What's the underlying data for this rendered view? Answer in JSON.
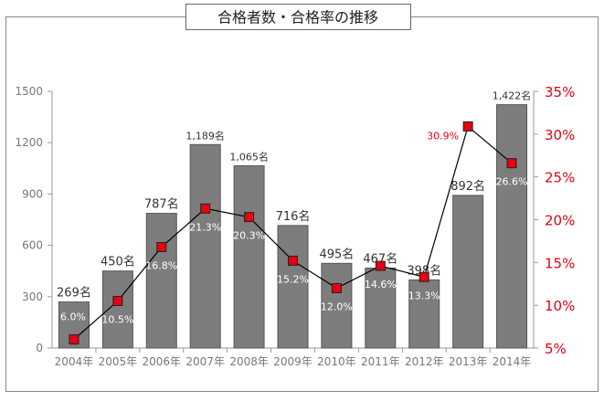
{
  "chart_data": {
    "type": "bar",
    "title": "合格者数・合格率の推移",
    "categories": [
      "2004年",
      "2005年",
      "2006年",
      "2007年",
      "2008年",
      "2009年",
      "2010年",
      "2011年",
      "2012年",
      "2013年",
      "2014年"
    ],
    "series": [
      {
        "values": [
          269,
          450,
          787,
          1189,
          1065,
          716,
          495,
          467,
          398,
          892,
          1422
        ],
        "data_labels": [
          "269名",
          "450名",
          "787名",
          "1,189名",
          "1,065名",
          "716名",
          "495名",
          "467名",
          "398名",
          "892名",
          "1,422名"
        ]
      },
      {
        "type": "line",
        "axis": "right",
        "values": [
          6.0,
          10.5,
          16.8,
          21.3,
          20.3,
          15.2,
          12.0,
          14.6,
          13.3,
          30.9,
          26.6
        ],
        "data_labels": [
          "6.0%",
          "10.5%",
          "16.8%",
          "21.3%",
          "20.3%",
          "15.2%",
          "12.0%",
          "14.6%",
          "13.3%",
          "30.9%",
          "26.6%"
        ]
      }
    ],
    "y_left": {
      "ticks": [
        0,
        300,
        600,
        900,
        1200,
        1500
      ],
      "tick_labels": [
        "0",
        "300",
        "600",
        "900",
        "1200",
        "1500"
      ],
      "ylim": [
        0,
        1500
      ]
    },
    "y_right": {
      "ticks": [
        5,
        10,
        15,
        20,
        25,
        30,
        35
      ],
      "tick_labels": [
        "5%",
        "10%",
        "15%",
        "20%",
        "25%",
        "30%",
        "35%"
      ],
      "ylim": [
        5,
        35
      ]
    },
    "grid": false,
    "colors": {
      "bar_fill": "#7d7d7d",
      "bar_stroke": "#555555",
      "line": "#000000",
      "marker_fill": "#e60012",
      "marker_stroke": "#222222",
      "right_axis": "#e60012",
      "left_axis_text": "#777777",
      "frame": "#888888",
      "label_dark": "#333333",
      "label_light": "#ffffff",
      "label_red": "#e60012"
    }
  }
}
